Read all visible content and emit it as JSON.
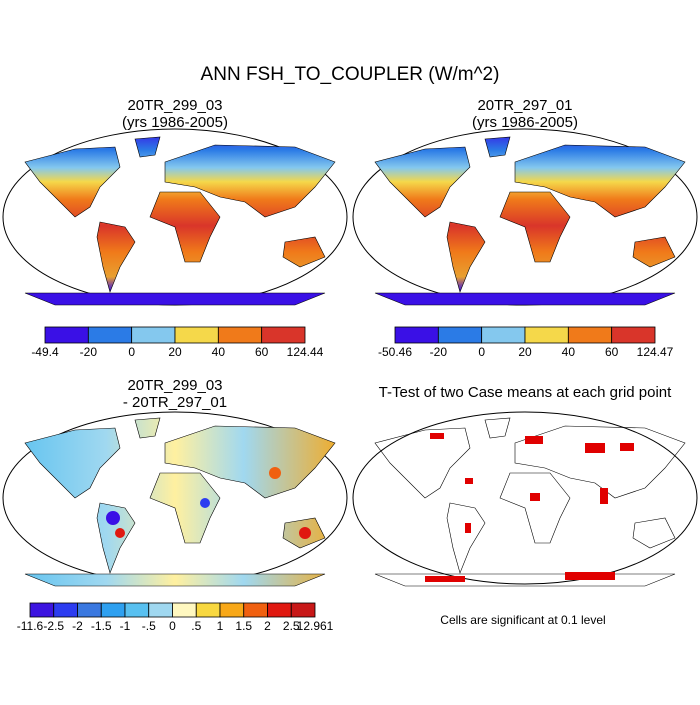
{
  "title": "ANN FSH_TO_COUPLER (W/m^2)",
  "panels": [
    {
      "title": "20TR_299_03",
      "subtitle": "(yrs 1986-2005)",
      "colorbar": {
        "colors": [
          "#3a10e6",
          "#2b7be6",
          "#84c8ee",
          "#f5d84a",
          "#f07a1a",
          "#d9352a"
        ],
        "labels": [
          "-49.4",
          "-20",
          "0",
          "20",
          "40",
          "60",
          "124.44"
        ]
      }
    },
    {
      "title": "20TR_297_01",
      "subtitle": "(yrs 1986-2005)",
      "colorbar": {
        "colors": [
          "#3a10e6",
          "#2b7be6",
          "#84c8ee",
          "#f5d84a",
          "#f07a1a",
          "#d9352a"
        ],
        "labels": [
          "-50.46",
          "-20",
          "0",
          "20",
          "40",
          "60",
          "124.47"
        ]
      }
    },
    {
      "title": "20TR_299_03",
      "subtitle": "- 20TR_297_01",
      "colorbar": {
        "colors": [
          "#3c14e0",
          "#2c3cf0",
          "#3a78e0",
          "#2ea0f0",
          "#58c0f0",
          "#a0d8f0",
          "#fff8c0",
          "#f8d840",
          "#f8a818",
          "#f06010",
          "#e01810",
          "#c81818"
        ],
        "labels": [
          "-11.6",
          "-2.5",
          "-2",
          "-1.5",
          "-1",
          "-.5",
          "0",
          ".5",
          "1",
          "1.5",
          "2",
          "2.5",
          "12.961"
        ]
      }
    },
    {
      "title": "T-Test of two Case means at each grid point",
      "note": "Cells are significant at 0.1 level"
    }
  ]
}
